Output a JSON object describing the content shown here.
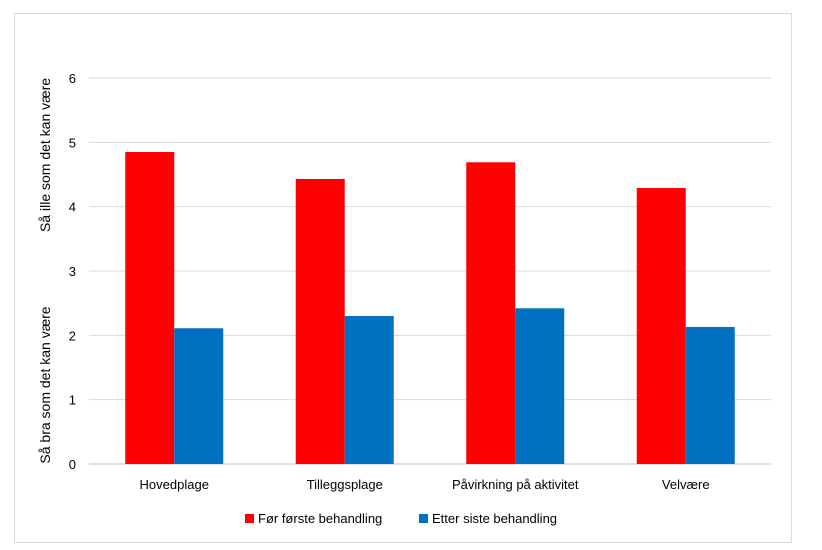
{
  "chart_data": {
    "type": "bar",
    "categories": [
      "Hovedplage",
      "Tilleggsplage",
      "Påvirkning på aktivitet",
      "Velvære"
    ],
    "series": [
      {
        "name": "Før første behandling",
        "values": [
          4.85,
          4.43,
          4.69,
          4.29
        ],
        "color": "#ff0000"
      },
      {
        "name": "Etter siste behandling",
        "values": [
          2.11,
          2.3,
          2.42,
          2.13
        ],
        "color": "#0070c0"
      }
    ],
    "ylim": [
      0,
      6
    ],
    "yticks": [
      "0",
      "1",
      "2",
      "3",
      "4",
      "5",
      "6"
    ],
    "ylabel_top": "Så ille som det kan være",
    "ylabel_bottom": "Så bra som det kan være",
    "grid": true,
    "legend_position": "bottom"
  }
}
